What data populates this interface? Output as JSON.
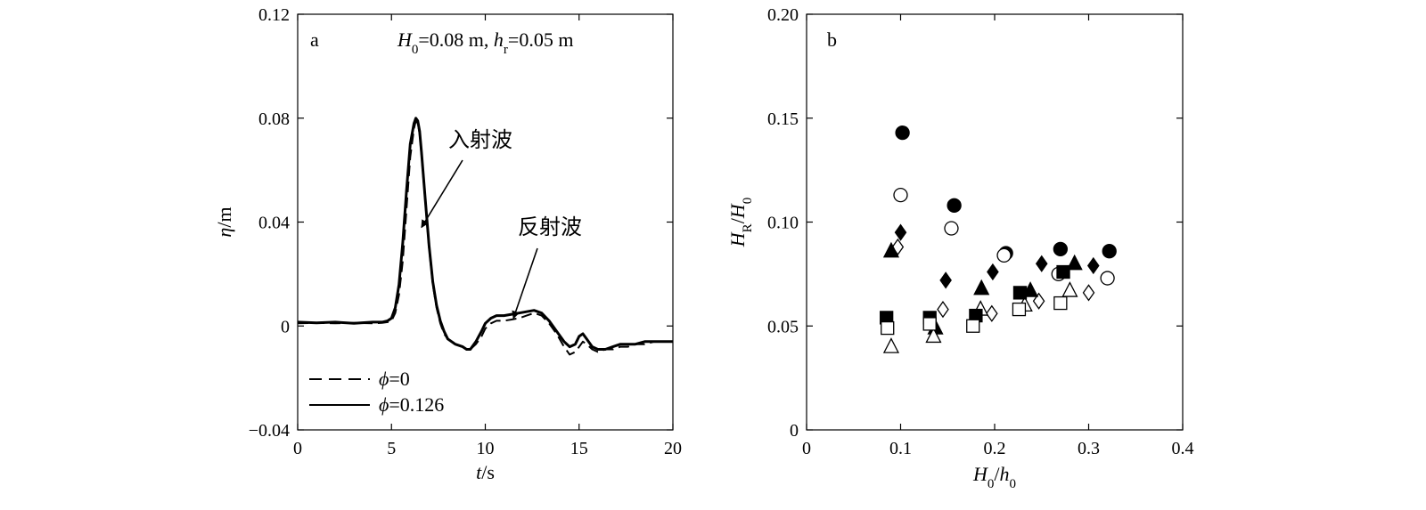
{
  "chart_data": [
    {
      "type": "line",
      "panel_label": "a",
      "title": "",
      "subtitle_parts": {
        "H_sym": "H",
        "H_sub": "0",
        "H_val": "=0.08 m, ",
        "h_sym": "h",
        "h_sub": "r",
        "h_val": "=0.05 m"
      },
      "xlabel": {
        "sym": "t",
        "unit": "/s"
      },
      "ylabel": {
        "sym": "η",
        "unit": "/m"
      },
      "xlim": [
        0,
        20
      ],
      "ylim": [
        -0.04,
        0.12
      ],
      "xticks": [
        0,
        5,
        10,
        15,
        20
      ],
      "xtick_labels": [
        "0",
        "5",
        "10",
        "15",
        "20"
      ],
      "yticks": [
        -0.04,
        0,
        0.04,
        0.08,
        0.12
      ],
      "ytick_labels": [
        "−0.04",
        "0",
        "0.04",
        "0.08",
        "0.12"
      ],
      "annotations": [
        {
          "text": "入射波",
          "x": 6.6,
          "y": 0.04
        },
        {
          "text": "反射波",
          "x": 11.5,
          "y": 0.005
        }
      ],
      "legend": {
        "placement": "bottom-left",
        "entries": [
          {
            "sym": "ϕ",
            "text": "=0",
            "style": "dashed"
          },
          {
            "sym": "ϕ",
            "text": "=0.126",
            "style": "solid"
          }
        ]
      },
      "series": [
        {
          "legend_index": 0,
          "style": "dashed",
          "x": [
            0,
            1,
            2,
            3,
            4,
            4.5,
            4.8,
            5.0,
            5.2,
            5.4,
            5.6,
            5.8,
            6.0,
            6.2,
            6.3,
            6.4,
            6.5,
            6.6,
            6.8,
            7.0,
            7.2,
            7.4,
            7.6,
            7.8,
            8.0,
            8.4,
            8.8,
            9.0,
            9.2,
            9.5,
            9.8,
            10.0,
            10.3,
            10.6,
            11.0,
            11.4,
            11.8,
            12.2,
            12.6,
            13.0,
            13.4,
            13.8,
            14.2,
            14.5,
            14.8,
            15.0,
            15.2,
            15.4,
            15.7,
            16.0,
            16.4,
            16.8,
            17.2,
            17.6,
            18.0,
            18.5,
            19.0,
            19.5,
            20.0
          ],
          "y": [
            0.001,
            0.0012,
            0.001,
            0.0012,
            0.001,
            0.0012,
            0.0015,
            0.002,
            0.005,
            0.012,
            0.025,
            0.045,
            0.065,
            0.076,
            0.079,
            0.078,
            0.074,
            0.066,
            0.048,
            0.03,
            0.016,
            0.007,
            0.001,
            -0.003,
            -0.005,
            -0.007,
            -0.008,
            -0.009,
            -0.009,
            -0.007,
            -0.004,
            -0.001,
            0.001,
            0.002,
            0.002,
            0.0025,
            0.003,
            0.004,
            0.005,
            0.004,
            0.001,
            -0.003,
            -0.008,
            -0.011,
            -0.01,
            -0.008,
            -0.006,
            -0.007,
            -0.009,
            -0.01,
            -0.009,
            -0.009,
            -0.008,
            -0.008,
            -0.007,
            -0.007,
            -0.006,
            -0.006,
            -0.006
          ]
        },
        {
          "legend_index": 1,
          "style": "solid",
          "x": [
            0,
            1,
            2,
            3,
            4,
            4.5,
            4.8,
            5.0,
            5.2,
            5.4,
            5.6,
            5.8,
            6.0,
            6.2,
            6.3,
            6.4,
            6.5,
            6.6,
            6.8,
            7.0,
            7.2,
            7.4,
            7.6,
            7.8,
            8.0,
            8.4,
            8.8,
            9.0,
            9.2,
            9.5,
            9.8,
            10.0,
            10.3,
            10.6,
            11.0,
            11.4,
            11.8,
            12.2,
            12.6,
            13.0,
            13.4,
            13.8,
            14.2,
            14.5,
            14.8,
            15.0,
            15.2,
            15.4,
            15.7,
            16.0,
            16.4,
            16.8,
            17.2,
            17.6,
            18.0,
            18.5,
            19.0,
            19.5,
            20.0
          ],
          "y": [
            0.0015,
            0.0012,
            0.0015,
            0.001,
            0.0015,
            0.0015,
            0.002,
            0.003,
            0.007,
            0.016,
            0.032,
            0.052,
            0.07,
            0.078,
            0.08,
            0.079,
            0.075,
            0.067,
            0.049,
            0.031,
            0.017,
            0.008,
            0.002,
            -0.002,
            -0.005,
            -0.007,
            -0.008,
            -0.009,
            -0.009,
            -0.006,
            -0.002,
            0.001,
            0.003,
            0.004,
            0.004,
            0.0045,
            0.005,
            0.0055,
            0.006,
            0.005,
            0.002,
            -0.002,
            -0.006,
            -0.008,
            -0.007,
            -0.004,
            -0.003,
            -0.005,
            -0.008,
            -0.009,
            -0.009,
            -0.008,
            -0.007,
            -0.007,
            -0.007,
            -0.006,
            -0.006,
            -0.006,
            -0.006
          ]
        }
      ]
    },
    {
      "type": "scatter",
      "panel_label": "b",
      "title": "",
      "xlabel": {
        "sym": "H",
        "sub": "0",
        "mid": "/",
        "sym2": "h",
        "sub2": "0"
      },
      "ylabel": {
        "sym": "H",
        "sub": "R",
        "mid": "/",
        "sym2": "H",
        "sub2": "0"
      },
      "xlim": [
        0,
        0.4
      ],
      "ylim": [
        0,
        0.2
      ],
      "xticks": [
        0,
        0.1,
        0.2,
        0.3,
        0.4
      ],
      "xtick_labels": [
        "0",
        "0.1",
        "0.2",
        "0.3",
        "0.4"
      ],
      "yticks": [
        0,
        0.05,
        0.1,
        0.15,
        0.2
      ],
      "ytick_labels": [
        "0",
        "0.05",
        "0.10",
        "0.15",
        "0.20"
      ],
      "series": [
        {
          "marker": "circle",
          "filled": true,
          "x": [
            0.102,
            0.157,
            0.212,
            0.27,
            0.322
          ],
          "y": [
            0.143,
            0.108,
            0.085,
            0.087,
            0.086
          ]
        },
        {
          "marker": "circle",
          "filled": false,
          "x": [
            0.1,
            0.154,
            0.21,
            0.268,
            0.32
          ],
          "y": [
            0.113,
            0.097,
            0.084,
            0.075,
            0.073
          ]
        },
        {
          "marker": "diamond",
          "filled": true,
          "x": [
            0.1,
            0.148,
            0.198,
            0.25,
            0.305
          ],
          "y": [
            0.095,
            0.072,
            0.076,
            0.08,
            0.079
          ]
        },
        {
          "marker": "diamond",
          "filled": false,
          "x": [
            0.097,
            0.145,
            0.197,
            0.247,
            0.3
          ],
          "y": [
            0.088,
            0.058,
            0.056,
            0.062,
            0.066
          ]
        },
        {
          "marker": "triangle",
          "filled": true,
          "x": [
            0.09,
            0.137,
            0.186,
            0.238,
            0.285
          ],
          "y": [
            0.086,
            0.049,
            0.068,
            0.067,
            0.08
          ]
        },
        {
          "marker": "triangle",
          "filled": false,
          "x": [
            0.09,
            0.135,
            0.185,
            0.232,
            0.28
          ],
          "y": [
            0.04,
            0.045,
            0.058,
            0.06,
            0.067
          ]
        },
        {
          "marker": "square",
          "filled": true,
          "x": [
            0.085,
            0.131,
            0.18,
            0.227,
            0.273
          ],
          "y": [
            0.054,
            0.054,
            0.055,
            0.066,
            0.076
          ]
        },
        {
          "marker": "square",
          "filled": false,
          "x": [
            0.086,
            0.131,
            0.177,
            0.226,
            0.27
          ],
          "y": [
            0.049,
            0.051,
            0.05,
            0.058,
            0.061
          ]
        }
      ]
    }
  ]
}
